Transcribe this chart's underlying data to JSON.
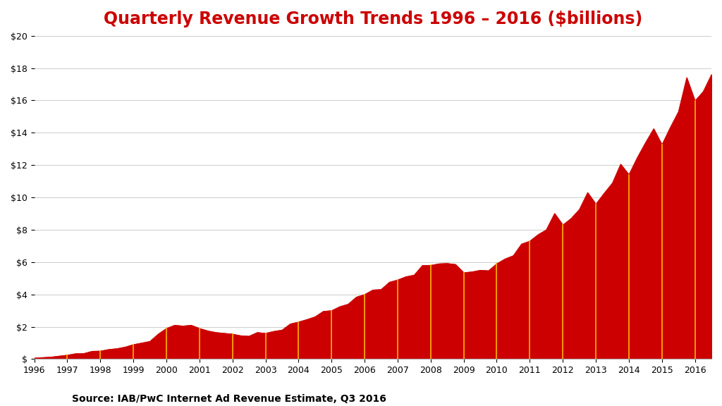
{
  "title": "Quarterly Revenue Growth Trends 1996 – 2016 ($billions)",
  "source_text": "Source: IAB/PwC Internet Ad Revenue Estimate, Q3 2016",
  "title_color": "#cc0000",
  "area_color": "#cc0000",
  "vline_color": "#FFB300",
  "background_color": "#ffffff",
  "ylim": [
    0,
    20
  ],
  "ytick_values": [
    0,
    2,
    4,
    6,
    8,
    10,
    12,
    14,
    16,
    18,
    20
  ],
  "values": [
    0.07,
    0.1,
    0.13,
    0.19,
    0.25,
    0.34,
    0.35,
    0.49,
    0.5,
    0.6,
    0.65,
    0.75,
    0.9,
    1.0,
    1.1,
    1.55,
    1.9,
    2.1,
    2.05,
    2.1,
    1.9,
    1.75,
    1.65,
    1.6,
    1.55,
    1.45,
    1.42,
    1.65,
    1.6,
    1.72,
    1.8,
    2.18,
    2.3,
    2.45,
    2.62,
    2.96,
    3.0,
    3.25,
    3.4,
    3.84,
    4.0,
    4.28,
    4.31,
    4.76,
    4.9,
    5.1,
    5.2,
    5.8,
    5.8,
    5.9,
    5.92,
    5.86,
    5.35,
    5.4,
    5.5,
    5.47,
    5.9,
    6.2,
    6.4,
    7.12,
    7.3,
    7.7,
    8.0,
    9.01,
    8.3,
    8.7,
    9.26,
    10.3,
    9.59,
    10.26,
    10.89,
    12.06,
    11.41,
    12.45,
    13.38,
    14.25,
    13.26,
    14.32,
    15.3,
    17.41,
    15.97,
    16.55,
    17.6
  ],
  "year_boundaries": [
    1997,
    1998,
    1999,
    2000,
    2001,
    2002,
    2003,
    2004,
    2005,
    2006,
    2007,
    2008,
    2009,
    2010,
    2011,
    2012,
    2013,
    2014,
    2015,
    2016
  ],
  "xtick_years": [
    1996,
    1997,
    1998,
    1999,
    2000,
    2001,
    2002,
    2003,
    2004,
    2005,
    2006,
    2007,
    2008,
    2009,
    2010,
    2011,
    2012,
    2013,
    2014,
    2015,
    2016
  ],
  "title_fontsize": 17,
  "source_fontsize": 10
}
